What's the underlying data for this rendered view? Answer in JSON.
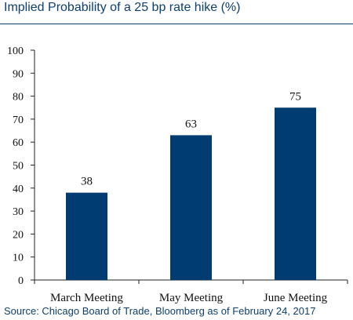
{
  "title": "Implied Probability of a 25 bp rate hike (%)",
  "source": "Source: Chicago Board of Trade, Bloomberg as of February 24, 2017",
  "colors": {
    "bar": "#003c71",
    "title": "#0e3f6e",
    "axis": "#222222"
  },
  "chart_data": {
    "type": "bar",
    "title": "Implied Probability of a 25 bp rate hike (%)",
    "categories": [
      "March Meeting",
      "May Meeting",
      "June Meeting"
    ],
    "values": [
      38,
      63,
      75
    ],
    "data_labels": [
      "38",
      "63",
      "75"
    ],
    "ylim": [
      0,
      100
    ],
    "yticks": [
      0,
      10,
      20,
      30,
      40,
      50,
      60,
      70,
      80,
      90,
      100
    ],
    "grid": false,
    "legend": "none",
    "xlabel": "",
    "ylabel": ""
  }
}
